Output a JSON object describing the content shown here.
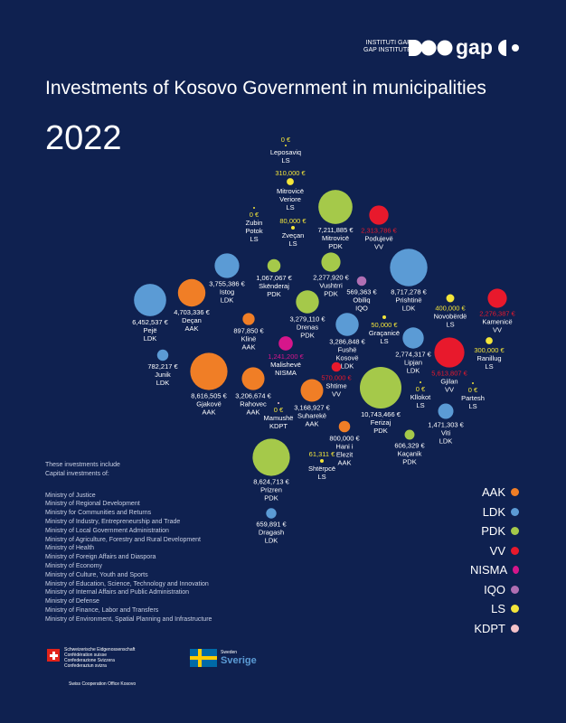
{
  "title": "Investments of Kosovo Government in municipalities",
  "year": "2022",
  "brand": {
    "line1": "INSTITUTI GAP",
    "line2": "GAP INSTITUTE"
  },
  "party_colors": {
    "AAK": "#f07e26",
    "LDK": "#5b9bd5",
    "PDK": "#a5c94a",
    "VV": "#e8192c",
    "NISMA": "#d6168b",
    "IQO": "#b06fb3",
    "LS": "#f3e53a",
    "KDPT": "#f4c2c9"
  },
  "legend": [
    "AAK",
    "LDK",
    "PDK",
    "VV",
    "NISMA",
    "IQO",
    "LS",
    "KDPT"
  ],
  "notes": {
    "intro": [
      "These investments include",
      "Capital investments of:"
    ],
    "ministries": [
      "Ministry of Justice",
      "Ministry of Regional Development",
      "Ministry for Communities and Returns",
      "Ministry of Industry, Entrepreneurship and Trade",
      "Ministry of Local Government Administration",
      "Ministry of Agriculture, Forestry and Rural Development",
      "Ministry of Health",
      "Ministry of Foreign Affairs and Diaspora",
      "Ministry of Economy",
      "Ministry of Culture, Youth and Sports",
      "Ministry of Education, Science, Technology and Innovation",
      "Ministry of Internal Affairs and Public Administration",
      "Ministry of Defense",
      "Ministry of Finance, Labor and Transfers",
      "Ministry of Environment, Spatial Planning and Infrastructure"
    ]
  },
  "sponsors": {
    "swiss_lines": [
      "Schweizerische Eidgenossenschaft",
      "Confédération suisse",
      "Confederazione Svizzera",
      "Confederaziun svizra"
    ],
    "swiss_office": "Swiss Cooperation Office Kosovo",
    "sweden_small": "Sweden",
    "sweden_big": "Sverige"
  },
  "chart_data": {
    "type": "scatter",
    "title": "Investments of Kosovo Government in municipalities",
    "subtitle": "2022",
    "unit": "€",
    "points": [
      {
        "name": "Leposaviq",
        "party": "LS",
        "value": 0,
        "amount": "0 €"
      },
      {
        "name": "Mitrovicë Veriore",
        "party": "LS",
        "value": 310000,
        "amount": "310,000 €"
      },
      {
        "name": "Zubin Potok",
        "party": "LS",
        "value": 0,
        "amount": "0 €"
      },
      {
        "name": "Zveçan",
        "party": "LS",
        "value": 80000,
        "amount": "80,000 €"
      },
      {
        "name": "Mitrovicë",
        "party": "PDK",
        "value": 7211885,
        "amount": "7,211,885 €"
      },
      {
        "name": "Podujevë",
        "party": "VV",
        "value": 2313786,
        "amount": "2,313,786 €"
      },
      {
        "name": "Istog",
        "party": "LDK",
        "value": 3755386,
        "amount": "3,755,386 €"
      },
      {
        "name": "Skënderaj",
        "party": "PDK",
        "value": 1067067,
        "amount": "1,067,067 €"
      },
      {
        "name": "Vushtrri",
        "party": "PDK",
        "value": 2277920,
        "amount": "2,277,920 €"
      },
      {
        "name": "Obiliq",
        "party": "IQO",
        "value": 569363,
        "amount": "569,363 €"
      },
      {
        "name": "Prishtinë",
        "party": "LDK",
        "value": 8717278,
        "amount": "8,717,278 €"
      },
      {
        "name": "Pejë",
        "party": "LDK",
        "value": 6452537,
        "amount": "6,452,537 €"
      },
      {
        "name": "Deçan",
        "party": "AAK",
        "value": 4703336,
        "amount": "4,703,336 €"
      },
      {
        "name": "Drenas",
        "party": "PDK",
        "value": 3279110,
        "amount": "3,279,110 €"
      },
      {
        "name": "Klinë",
        "party": "AAK",
        "value": 897850,
        "amount": "897,850 €"
      },
      {
        "name": "Novobërdë",
        "party": "LS",
        "value": 400000,
        "amount": "400,000 €"
      },
      {
        "name": "Kamenicë",
        "party": "VV",
        "value": 2276387,
        "amount": "2,276,387 €"
      },
      {
        "name": "Graçanicë",
        "party": "LS",
        "value": 50000,
        "amount": "50,000 €"
      },
      {
        "name": "Fushë Kosovë",
        "party": "LDK",
        "value": 3286848,
        "amount": "3,286,848 €"
      },
      {
        "name": "Malishevë",
        "party": "NISMA",
        "value": 1241200,
        "amount": "1,241,200 €"
      },
      {
        "name": "Lipjan",
        "party": "LDK",
        "value": 2774317,
        "amount": "2,774,317 €"
      },
      {
        "name": "Ranillug",
        "party": "LS",
        "value": 300000,
        "amount": "300,000 €"
      },
      {
        "name": "Junik",
        "party": "LDK",
        "value": 782217,
        "amount": "782,217 €"
      },
      {
        "name": "Shtime",
        "party": "VV",
        "value": 570000,
        "amount": "570,000 €"
      },
      {
        "name": "Gjilan",
        "party": "VV",
        "value": 5613807,
        "amount": "5,613,807 €"
      },
      {
        "name": "Gjakovë",
        "party": "AAK",
        "value": 8616505,
        "amount": "8,616,505 €"
      },
      {
        "name": "Rahovec",
        "party": "AAK",
        "value": 3206674,
        "amount": "3,206,674 €"
      },
      {
        "name": "Suharekë",
        "party": "AAK",
        "value": 3168927,
        "amount": "3,168,927 €"
      },
      {
        "name": "Ferizaj",
        "party": "PDK",
        "value": 10743466,
        "amount": "10,743,466 €"
      },
      {
        "name": "Kllokot",
        "party": "LS",
        "value": 0,
        "amount": "0 €"
      },
      {
        "name": "Partesh",
        "party": "LS",
        "value": 0,
        "amount": "0 €"
      },
      {
        "name": "Mamushë",
        "party": "KDPT",
        "value": 0,
        "amount": "0 €"
      },
      {
        "name": "Viti",
        "party": "LDK",
        "value": 1471303,
        "amount": "1,471,303 €"
      },
      {
        "name": "Hani i Elezit",
        "party": "AAK",
        "value": 800000,
        "amount": "800,000 €"
      },
      {
        "name": "Kaçanik",
        "party": "PDK",
        "value": 606329,
        "amount": "606,329 €"
      },
      {
        "name": "Prizren",
        "party": "PDK",
        "value": 8624713,
        "amount": "8,624,713 €"
      },
      {
        "name": "Shtërpcë",
        "party": "LS",
        "value": 61311,
        "amount": "61,311 €"
      },
      {
        "name": "Dragash",
        "party": "LDK",
        "value": 659891,
        "amount": "659,891 €"
      }
    ]
  }
}
